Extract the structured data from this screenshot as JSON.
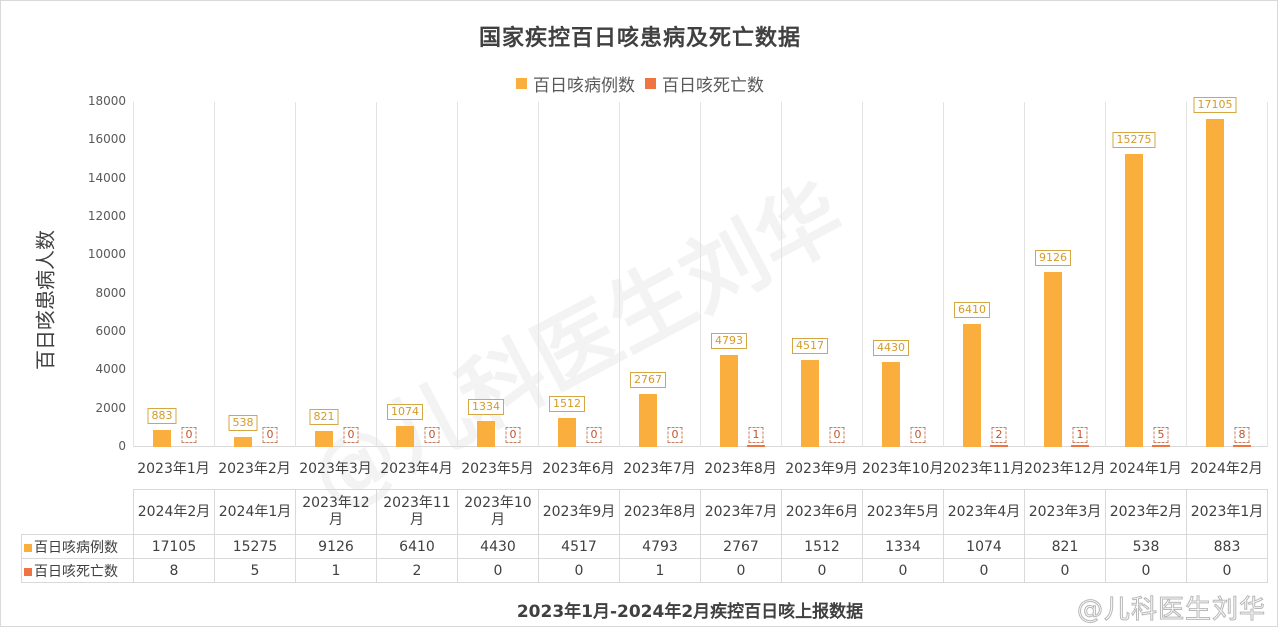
{
  "header": {
    "title": "国家疾控百日咳患病及死亡数据"
  },
  "legend": [
    {
      "label": "百日咳病例数",
      "color": "#F9AE3E"
    },
    {
      "label": "百日咳死亡数",
      "color": "#EE7442"
    }
  ],
  "axis": {
    "ylabel": "百日咳患病人数",
    "yticks": [
      "18000",
      "16000",
      "14000",
      "12000",
      "10000",
      "8000",
      "6000",
      "4000",
      "2000",
      "0"
    ]
  },
  "chart_data": {
    "type": "bar",
    "title": "国家疾控百日咳患病及死亡数据",
    "xlabel": "",
    "ylabel": "百日咳患病人数",
    "ylim": [
      0,
      18000
    ],
    "grid": "vertical category separators",
    "legend_position": "top",
    "categories": [
      "2023年1月",
      "2023年2月",
      "2023年3月",
      "2023年4月",
      "2023年5月",
      "2023年6月",
      "2023年7月",
      "2023年8月",
      "2023年9月",
      "2023年10月",
      "2023年11月",
      "2023年12月",
      "2024年1月",
      "2024年2月"
    ],
    "series": [
      {
        "name": "百日咳病例数",
        "color": "#F9AE3E",
        "values": [
          883,
          538,
          821,
          1074,
          1334,
          1512,
          2767,
          4793,
          4517,
          4430,
          6410,
          9126,
          15275,
          17105
        ]
      },
      {
        "name": "百日咳死亡数",
        "color": "#EE7442",
        "values": [
          0,
          0,
          0,
          0,
          0,
          0,
          0,
          1,
          0,
          0,
          2,
          1,
          5,
          8
        ]
      }
    ]
  },
  "table": {
    "columns": [
      "2024年2月",
      "2024年1月",
      "2023年12月",
      "2023年11月",
      "2023年10月",
      "2023年9月",
      "2023年8月",
      "2023年7月",
      "2023年6月",
      "2023年5月",
      "2023年4月",
      "2023年3月",
      "2023年2月",
      "2023年1月"
    ],
    "rows": [
      {
        "label": "百日咳病例数",
        "color": "#F9AE3E",
        "values": [
          "17105",
          "15275",
          "9126",
          "6410",
          "4430",
          "4517",
          "4793",
          "2767",
          "1512",
          "1334",
          "1074",
          "821",
          "538",
          "883"
        ]
      },
      {
        "label": "百日咳死亡数",
        "color": "#EE7442",
        "values": [
          "8",
          "5",
          "1",
          "2",
          "0",
          "0",
          "1",
          "0",
          "0",
          "0",
          "0",
          "0",
          "0",
          "0"
        ]
      }
    ]
  },
  "footer": {
    "caption": "2023年1月-2024年2月疾控百日咳上报数据",
    "watermark": "@儿科医生刘华"
  }
}
